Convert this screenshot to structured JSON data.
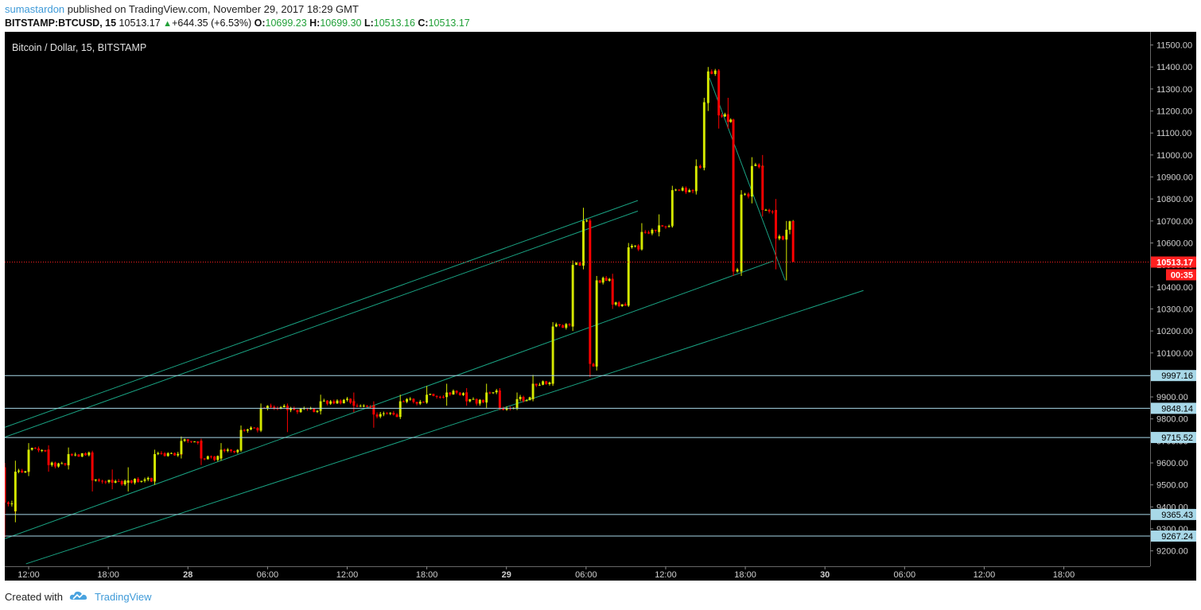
{
  "header": {
    "username": "sumastardon",
    "published_text": "published on TradingView.com, November 29, 2017 18:29 GMT",
    "symbol": "BITSTAMP:BTCUSD, 15",
    "last_price": "10513.17",
    "change": "+644.35 (+6.53%)",
    "open_label": "O:",
    "open": "10699.23",
    "high_label": "H:",
    "high": "10699.30",
    "low_label": "L:",
    "low": "10513.16",
    "close_label": "C:",
    "close": "10513.17"
  },
  "footer": {
    "created_with": "Created with",
    "brand": "TradingView"
  },
  "colors": {
    "background": "#000000",
    "up_candle": "#d4e800",
    "down_candle": "#ff0000",
    "channel_line": "#1aa383",
    "horizontal_line": "#a8d8e8",
    "price_marker": "#ff2020",
    "axis_text": "#d0d0d0",
    "up_text": "#21a038"
  },
  "chart_data": {
    "type": "candlestick",
    "title": "Bitcoin / Dollar, 15, BITSTAMP",
    "y_ticks": [
      9200,
      9300,
      9400,
      9500,
      9600,
      9700,
      9800,
      9900,
      10000,
      10100,
      10200,
      10300,
      10400,
      10500,
      10600,
      10700,
      10800,
      10900,
      11000,
      11100,
      11200,
      11300,
      11400,
      11500
    ],
    "y_tick_labels": [
      "9200.00",
      "9300.00",
      "9400.00",
      "9500.00",
      "9600.00",
      "9700.00",
      "9800.00",
      "9900.00",
      "10000.00",
      "10100.00",
      "10200.00",
      "10300.00",
      "10400.00",
      "10500.00",
      "10600.00",
      "10700.00",
      "10800.00",
      "10900.00",
      "11000.00",
      "11100.00",
      "11200.00",
      "11300.00",
      "11400.00",
      "11500.00"
    ],
    "x_ticks": [
      {
        "t": 12,
        "label": "12:00"
      },
      {
        "t": 18,
        "label": "18:00"
      },
      {
        "t": 24,
        "label": "28"
      },
      {
        "t": 30,
        "label": "06:00"
      },
      {
        "t": 36,
        "label": "12:00"
      },
      {
        "t": 42,
        "label": "18:00"
      },
      {
        "t": 48,
        "label": "29"
      },
      {
        "t": 54,
        "label": "06:00"
      },
      {
        "t": 60,
        "label": "12:00"
      },
      {
        "t": 66,
        "label": "18:00"
      },
      {
        "t": 72,
        "label": "30"
      },
      {
        "t": 78,
        "label": "06:00"
      },
      {
        "t": 84,
        "label": "12:00"
      },
      {
        "t": 90,
        "label": "18:00"
      }
    ],
    "x_unit": "hours since Nov 27 00:00",
    "ylim": [
      9130,
      11560
    ],
    "xlim": [
      10.2,
      96.5
    ],
    "last_price": {
      "value": 10513.17,
      "label": "10513.17",
      "countdown": "00:35"
    },
    "horizontal_levels": [
      {
        "value": 9997.16,
        "label": "9997.16"
      },
      {
        "value": 9848.14,
        "label": "9848.14"
      },
      {
        "value": 9715.52,
        "label": "9715.52"
      },
      {
        "value": 9365.43,
        "label": "9365.43"
      },
      {
        "value": 9267.24,
        "label": "9267.24"
      }
    ],
    "trend_lines": [
      {
        "x1": 10.2,
        "y1": 9762,
        "x2": 57.9,
        "y2": 10793
      },
      {
        "x1": 10.2,
        "y1": 9717,
        "x2": 57.9,
        "y2": 10745
      },
      {
        "x1": 10.2,
        "y1": 9255,
        "x2": 68.1,
        "y2": 10518
      },
      {
        "x1": 11.8,
        "y1": 9141,
        "x2": 74.9,
        "y2": 10384
      },
      {
        "x1": 63.3,
        "y1": 11350,
        "x2": 69.0,
        "y2": 10430
      }
    ],
    "anchors": [
      [
        10.2,
        9580,
        9420,
        9600,
        9260
      ],
      [
        11.0,
        9380,
        9560,
        9610,
        9330
      ],
      [
        12.0,
        9560,
        9660,
        9690,
        9540
      ],
      [
        13.5,
        9660,
        9590,
        9680,
        9560
      ],
      [
        15.0,
        9590,
        9640,
        9670,
        9570
      ],
      [
        16.8,
        9640,
        9520,
        9650,
        9470
      ],
      [
        18.3,
        9520,
        9510,
        9570,
        9480
      ],
      [
        19.5,
        9510,
        9520,
        9580,
        9470
      ],
      [
        21.5,
        9520,
        9640,
        9660,
        9500
      ],
      [
        23.5,
        9640,
        9700,
        9720,
        9620
      ],
      [
        25.0,
        9700,
        9620,
        9710,
        9590
      ],
      [
        26.5,
        9620,
        9660,
        9690,
        9610
      ],
      [
        28.0,
        9660,
        9750,
        9770,
        9650
      ],
      [
        29.5,
        9750,
        9850,
        9870,
        9740
      ],
      [
        31.5,
        9850,
        9840,
        9870,
        9740
      ],
      [
        34.0,
        9840,
        9880,
        9910,
        9820
      ],
      [
        36.5,
        9880,
        9860,
        9920,
        9830
      ],
      [
        38.0,
        9860,
        9820,
        9880,
        9760
      ],
      [
        40.0,
        9820,
        9880,
        9910,
        9830
      ],
      [
        42.0,
        9880,
        9910,
        9950,
        9870
      ],
      [
        43.5,
        9910,
        9920,
        9960,
        9860
      ],
      [
        45.0,
        9920,
        9880,
        9940,
        9860
      ],
      [
        46.5,
        9880,
        9920,
        9960,
        9850
      ],
      [
        47.5,
        9920,
        9850,
        9940,
        9840
      ],
      [
        48.8,
        9850,
        9890,
        9920,
        9840
      ],
      [
        50.0,
        9890,
        9960,
        10000,
        9880
      ],
      [
        51.5,
        9960,
        10220,
        10240,
        9950
      ],
      [
        53.0,
        10220,
        10500,
        10520,
        10200
      ],
      [
        53.8,
        10500,
        10700,
        10760,
        10480
      ],
      [
        54.3,
        10700,
        10050,
        10710,
        9990
      ],
      [
        54.8,
        10050,
        10430,
        10450,
        10020
      ],
      [
        56.0,
        10430,
        10320,
        10460,
        10300
      ],
      [
        57.2,
        10320,
        10580,
        10600,
        10310
      ],
      [
        58.2,
        10580,
        10650,
        10690,
        10570
      ],
      [
        59.5,
        10650,
        10680,
        10730,
        10630
      ],
      [
        60.5,
        10680,
        10840,
        10860,
        10670
      ],
      [
        62.3,
        10840,
        10950,
        10980,
        10820
      ],
      [
        62.9,
        10950,
        11240,
        11260,
        10930
      ],
      [
        63.2,
        11240,
        11380,
        11400,
        11200
      ],
      [
        64.0,
        11380,
        11180,
        11390,
        11120
      ],
      [
        64.7,
        11180,
        11150,
        11260,
        11120
      ],
      [
        65.1,
        11150,
        10470,
        11160,
        10450
      ],
      [
        65.7,
        10470,
        10820,
        10840,
        10450
      ],
      [
        66.5,
        10820,
        10950,
        10990,
        10780
      ],
      [
        67.3,
        10950,
        10750,
        11000,
        10720
      ],
      [
        68.3,
        10750,
        10620,
        10800,
        10480
      ],
      [
        69.1,
        10620,
        10660,
        10700,
        10430
      ],
      [
        69.6,
        10699.23,
        10513.17,
        10699.3,
        10513.16
      ]
    ]
  }
}
